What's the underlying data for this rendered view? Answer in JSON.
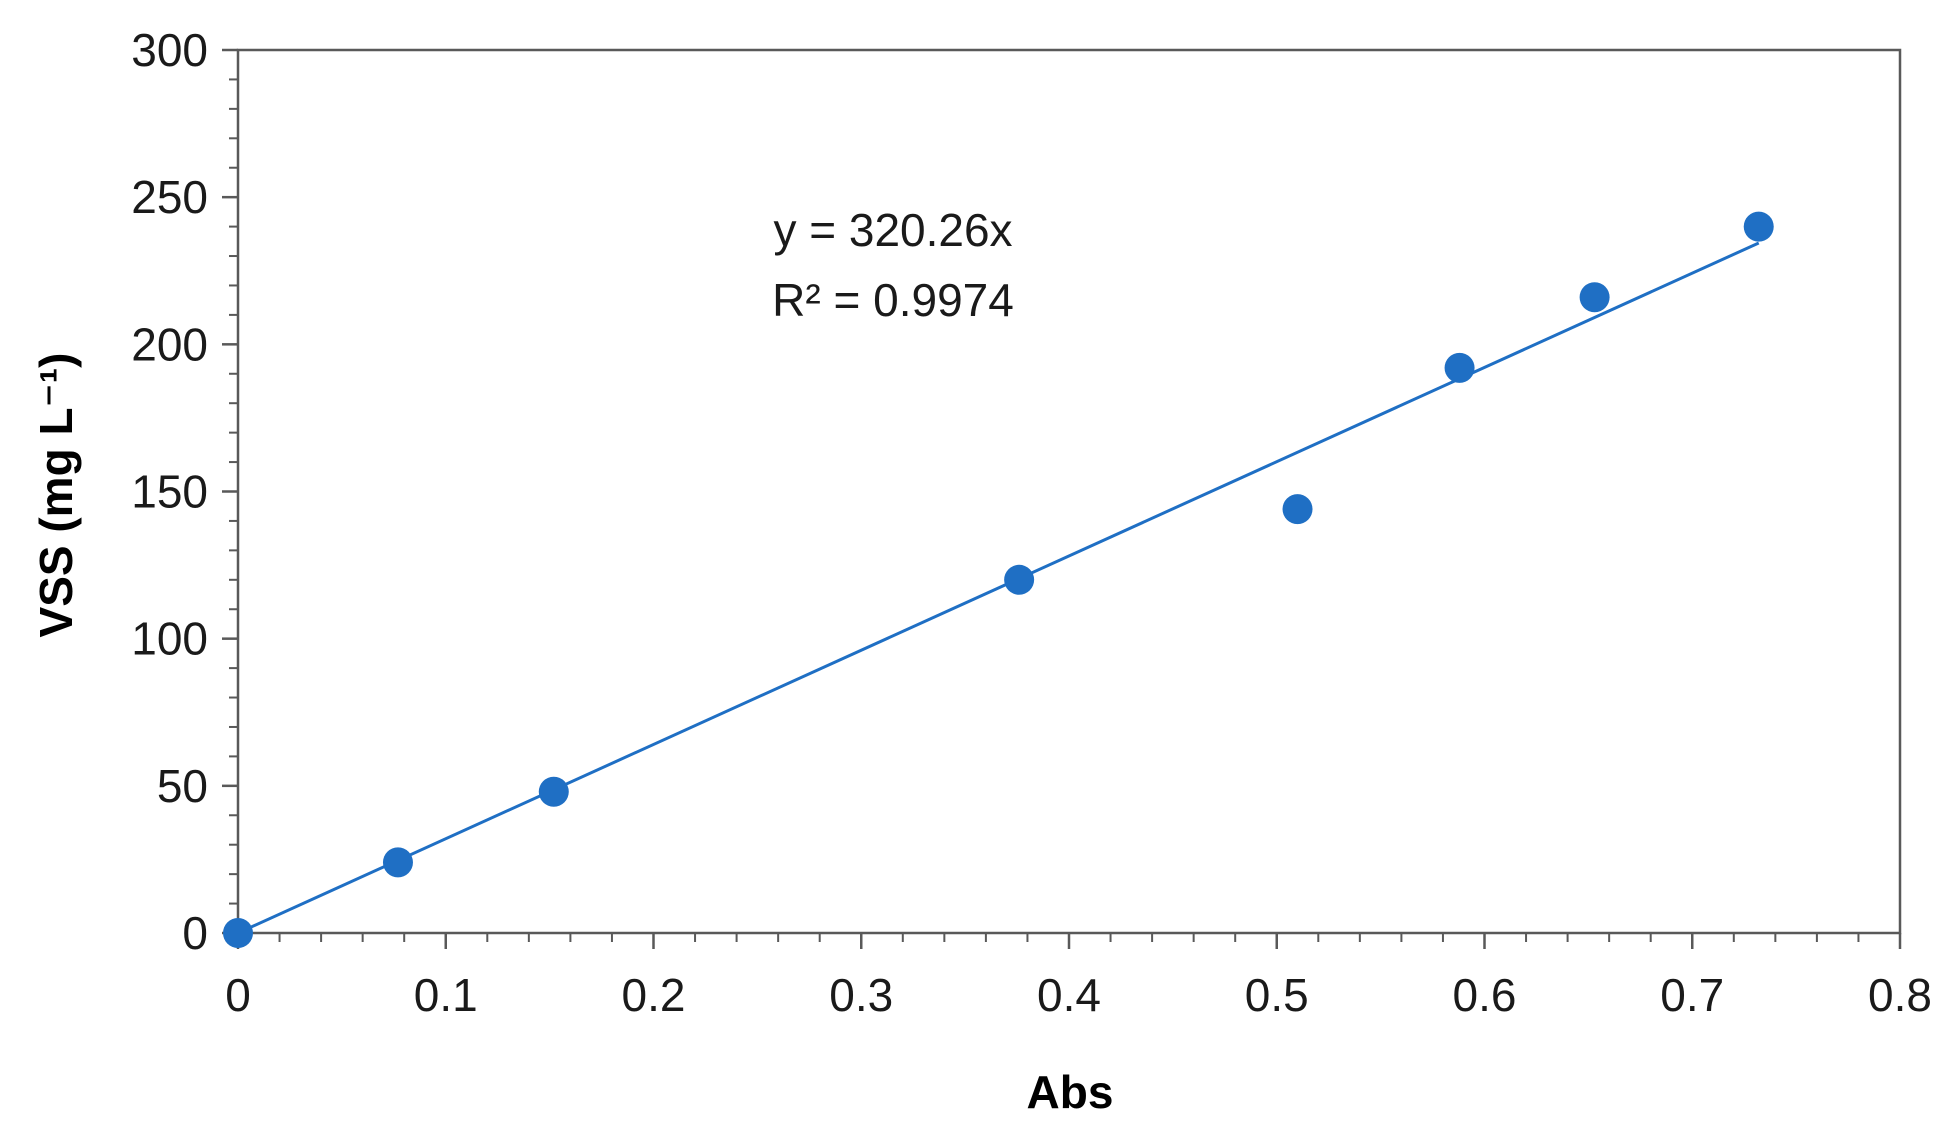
{
  "chart_data": {
    "type": "scatter",
    "title": "",
    "xlabel": "Abs",
    "ylabel": "VSS (mg L⁻¹)",
    "xlim": [
      0,
      0.8
    ],
    "ylim": [
      0,
      300
    ],
    "x_ticks": [
      "0",
      "0.1",
      "0.2",
      "0.3",
      "0.4",
      "0.5",
      "0.6",
      "0.7",
      "0.8"
    ],
    "y_ticks": [
      "0",
      "50",
      "100",
      "150",
      "200",
      "250",
      "300"
    ],
    "grid": false,
    "legend": "none",
    "series": [
      {
        "x": [
          0,
          0.077,
          0.152,
          0.376,
          0.51,
          0.588,
          0.653,
          0.732
        ],
        "y": [
          0,
          24,
          48,
          120,
          144,
          192,
          216,
          240
        ],
        "color": "#1f6fc4"
      }
    ],
    "trendline": {
      "slope": 320.26,
      "intercept": 0,
      "x_range": [
        0,
        0.732
      ],
      "color": "#1f6fc4"
    },
    "annotations": {
      "equation": "y = 320.26x",
      "r_squared": "R² = 0.9974"
    },
    "colors": {
      "axis": "#595959",
      "series": "#1f6fc4"
    }
  }
}
